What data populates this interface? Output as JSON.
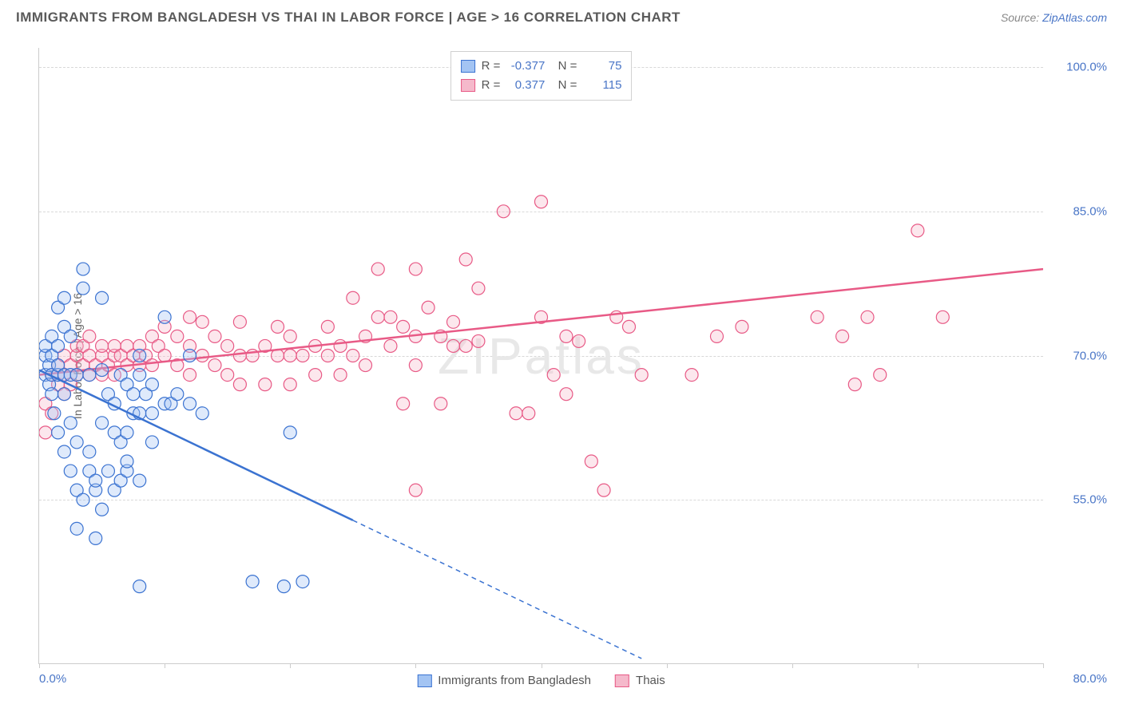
{
  "title": "IMMIGRANTS FROM BANGLADESH VS THAI IN LABOR FORCE | AGE > 16 CORRELATION CHART",
  "source": {
    "prefix": "Source: ",
    "link": "ZipAtlas.com"
  },
  "watermark": "ZIPatlas",
  "chart": {
    "type": "scatter-with-trend",
    "ylabel": "In Labor Force | Age > 16",
    "x_min_label": "0.0%",
    "x_max_label": "80.0%",
    "xlim": [
      0,
      80
    ],
    "ylim": [
      38,
      102
    ],
    "x_ticks": [
      0,
      10,
      20,
      30,
      40,
      50,
      60,
      70,
      80
    ],
    "y_gridlines": [
      55.0,
      70.0,
      85.0,
      100.0
    ],
    "y_gridline_labels": [
      "55.0%",
      "70.0%",
      "85.0%",
      "100.0%"
    ],
    "grid_color": "#d8d8d8",
    "background_color": "#ffffff",
    "axis_color": "#cccccc",
    "label_color": "#4a76c7",
    "marker_radius": 8,
    "marker_stroke_width": 1.2,
    "marker_fill_opacity": 0.35,
    "series_a": {
      "label": "Immigrants from Bangladesh",
      "R": "-0.377",
      "N": "75",
      "color": "#3b73d1",
      "fill": "#a3c4f3",
      "trend": {
        "x1": 0,
        "y1": 68.5,
        "x2": 48,
        "y2": 38.5,
        "solid_until_x": 25
      },
      "points": [
        [
          0.5,
          68
        ],
        [
          0.5,
          70
        ],
        [
          0.5,
          71
        ],
        [
          0.8,
          67
        ],
        [
          0.8,
          69
        ],
        [
          1,
          66
        ],
        [
          1,
          68
        ],
        [
          1,
          70
        ],
        [
          1,
          72
        ],
        [
          1.2,
          64
        ],
        [
          1.5,
          62
        ],
        [
          1.5,
          68
        ],
        [
          1.5,
          69
        ],
        [
          1.5,
          71
        ],
        [
          1.5,
          75
        ],
        [
          2,
          60
        ],
        [
          2,
          66
        ],
        [
          2,
          68
        ],
        [
          2,
          73
        ],
        [
          2,
          76
        ],
        [
          2.5,
          58
        ],
        [
          2.5,
          63
        ],
        [
          2.5,
          68
        ],
        [
          2.5,
          72
        ],
        [
          3,
          56
        ],
        [
          3,
          61
        ],
        [
          3,
          68
        ],
        [
          3.5,
          55
        ],
        [
          3.5,
          77
        ],
        [
          3.5,
          79
        ],
        [
          4,
          58
        ],
        [
          4,
          60
        ],
        [
          4,
          68
        ],
        [
          4.5,
          56
        ],
        [
          4.5,
          57
        ],
        [
          5,
          54
        ],
        [
          5,
          63
        ],
        [
          5,
          68.5
        ],
        [
          5,
          76
        ],
        [
          5.5,
          58
        ],
        [
          5.5,
          66
        ],
        [
          6,
          56
        ],
        [
          6,
          62
        ],
        [
          6,
          65
        ],
        [
          6.5,
          57
        ],
        [
          6.5,
          61
        ],
        [
          6.5,
          68
        ],
        [
          7,
          58
        ],
        [
          7,
          59
        ],
        [
          7,
          62
        ],
        [
          7,
          67
        ],
        [
          7.5,
          64
        ],
        [
          7.5,
          66
        ],
        [
          8,
          57
        ],
        [
          8,
          64
        ],
        [
          8,
          68
        ],
        [
          8,
          70
        ],
        [
          8.5,
          66
        ],
        [
          9,
          61
        ],
        [
          9,
          64
        ],
        [
          9,
          67
        ],
        [
          10,
          65
        ],
        [
          10,
          74
        ],
        [
          10.5,
          65
        ],
        [
          11,
          66
        ],
        [
          12,
          65
        ],
        [
          12,
          70
        ],
        [
          13,
          64
        ],
        [
          3,
          52
        ],
        [
          4.5,
          51
        ],
        [
          8,
          46
        ],
        [
          17,
          46.5
        ],
        [
          19.5,
          46
        ],
        [
          21,
          46.5
        ],
        [
          20,
          62
        ]
      ]
    },
    "series_b": {
      "label": "Thais",
      "R": "0.377",
      "N": "115",
      "color": "#e85a86",
      "fill": "#f5b9cb",
      "trend": {
        "x1": 0,
        "y1": 68,
        "x2": 80,
        "y2": 79,
        "solid_until_x": 80
      },
      "points": [
        [
          0.5,
          62
        ],
        [
          0.5,
          65
        ],
        [
          1,
          64
        ],
        [
          1,
          68
        ],
        [
          1.5,
          67
        ],
        [
          1.5,
          69
        ],
        [
          2,
          66
        ],
        [
          2,
          68
        ],
        [
          2,
          70
        ],
        [
          2.5,
          67
        ],
        [
          2.5,
          69
        ],
        [
          3,
          68
        ],
        [
          3,
          70
        ],
        [
          3,
          71
        ],
        [
          3.5,
          69
        ],
        [
          3.5,
          71
        ],
        [
          4,
          68
        ],
        [
          4,
          70
        ],
        [
          4,
          72
        ],
        [
          4.5,
          69
        ],
        [
          5,
          68
        ],
        [
          5,
          70
        ],
        [
          5,
          71
        ],
        [
          5.5,
          69
        ],
        [
          6,
          68
        ],
        [
          6,
          70
        ],
        [
          6,
          71
        ],
        [
          6.5,
          70
        ],
        [
          7,
          69
        ],
        [
          7,
          71
        ],
        [
          7.5,
          70
        ],
        [
          8,
          69
        ],
        [
          8,
          71
        ],
        [
          8.5,
          70
        ],
        [
          9,
          69
        ],
        [
          9,
          72
        ],
        [
          9.5,
          71
        ],
        [
          10,
          70
        ],
        [
          10,
          73
        ],
        [
          11,
          69
        ],
        [
          11,
          72
        ],
        [
          12,
          68
        ],
        [
          12,
          71
        ],
        [
          12,
          74
        ],
        [
          13,
          70
        ],
        [
          13,
          73.5
        ],
        [
          14,
          69
        ],
        [
          14,
          72
        ],
        [
          15,
          68
        ],
        [
          15,
          71
        ],
        [
          16,
          67
        ],
        [
          16,
          70
        ],
        [
          16,
          73.5
        ],
        [
          17,
          70
        ],
        [
          18,
          67
        ],
        [
          18,
          71
        ],
        [
          19,
          70
        ],
        [
          19,
          73
        ],
        [
          20,
          67
        ],
        [
          20,
          70
        ],
        [
          20,
          72
        ],
        [
          21,
          70
        ],
        [
          22,
          68
        ],
        [
          22,
          71
        ],
        [
          23,
          70
        ],
        [
          23,
          73
        ],
        [
          24,
          68
        ],
        [
          24,
          71
        ],
        [
          25,
          70
        ],
        [
          25,
          76
        ],
        [
          26,
          69
        ],
        [
          26,
          72
        ],
        [
          27,
          74
        ],
        [
          27,
          79
        ],
        [
          28,
          71
        ],
        [
          28,
          74
        ],
        [
          29,
          65
        ],
        [
          29,
          73
        ],
        [
          30,
          69
        ],
        [
          30,
          72
        ],
        [
          30,
          79
        ],
        [
          31,
          75
        ],
        [
          32,
          65
        ],
        [
          32,
          72
        ],
        [
          33,
          71
        ],
        [
          33,
          73.5
        ],
        [
          34,
          71
        ],
        [
          34,
          80
        ],
        [
          35,
          71.5
        ],
        [
          35,
          77
        ],
        [
          37,
          85
        ],
        [
          38,
          64
        ],
        [
          39,
          64
        ],
        [
          40,
          74
        ],
        [
          40,
          86
        ],
        [
          41,
          68
        ],
        [
          42,
          66
        ],
        [
          42,
          72
        ],
        [
          43,
          71.5
        ],
        [
          44,
          59
        ],
        [
          45,
          56
        ],
        [
          46,
          74
        ],
        [
          47,
          73
        ],
        [
          48,
          68
        ],
        [
          52,
          68
        ],
        [
          54,
          72
        ],
        [
          56,
          73
        ],
        [
          62,
          74
        ],
        [
          64,
          72
        ],
        [
          65,
          67
        ],
        [
          66,
          74
        ],
        [
          67,
          68
        ],
        [
          70,
          83
        ],
        [
          72,
          74
        ],
        [
          30,
          56
        ]
      ]
    }
  }
}
